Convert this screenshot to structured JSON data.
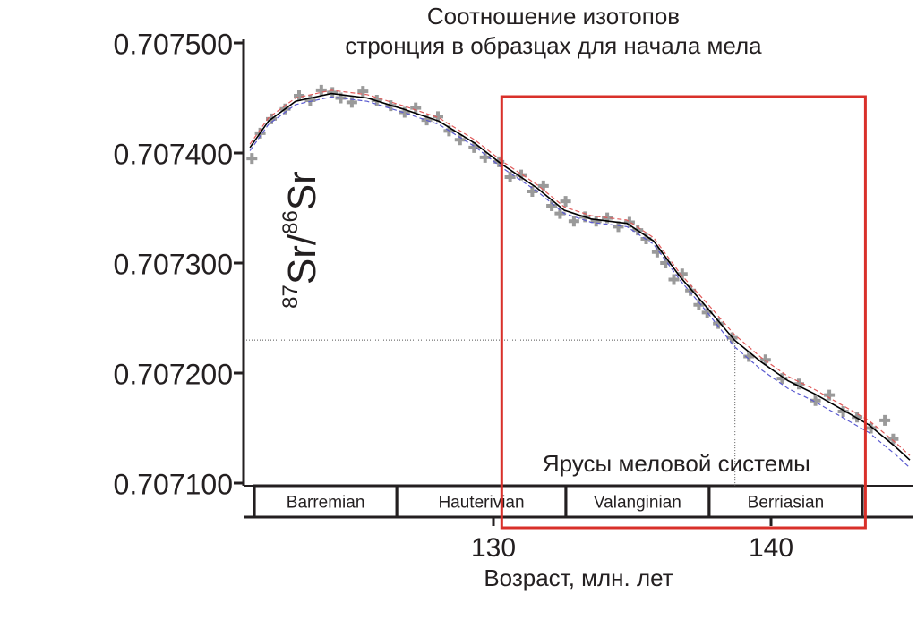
{
  "chart_data": {
    "type": "scatter",
    "title": [
      "Соотношение изотопов",
      "стронция в образцах для начала мела"
    ],
    "x_label": "Возраст, млн. лет",
    "y_label": [
      "87",
      "Sr/",
      "86",
      "Sr"
    ],
    "xlim": [
      121,
      145
    ],
    "xticks": [
      130,
      140
    ],
    "ylim": [
      0.7071,
      0.7075
    ],
    "yticks": [
      {
        "value": 0.7071,
        "label": "0.707100"
      },
      {
        "value": 0.7072,
        "label": "0.707200"
      },
      {
        "value": 0.7073,
        "label": "0.707300"
      },
      {
        "value": 0.7074,
        "label": "0.707400"
      },
      {
        "value": 0.7075,
        "label": "0.707500"
      }
    ],
    "point_color": "#9a9a9a",
    "x": [
      121.3,
      121.6,
      122.0,
      122.5,
      123.0,
      123.4,
      123.8,
      124.2,
      124.5,
      124.9,
      125.3,
      125.8,
      126.3,
      126.8,
      127.2,
      127.6,
      128.0,
      128.4,
      128.8,
      129.3,
      129.7,
      130.2,
      130.6,
      131.0,
      131.4,
      131.8,
      132.1,
      132.4,
      132.6,
      132.9,
      133.3,
      133.7,
      134.1,
      134.5,
      134.9,
      135.2,
      135.5,
      135.9,
      136.2,
      136.5,
      136.8,
      137.1,
      137.4,
      137.7,
      138.1,
      138.6,
      139.2,
      139.8,
      140.4,
      141.0,
      141.6,
      142.1,
      142.6,
      143.1,
      143.6,
      144.1,
      144.4
    ],
    "y": [
      0.707395,
      0.707418,
      0.707431,
      0.70744,
      0.707452,
      0.707448,
      0.707457,
      0.707455,
      0.70745,
      0.707446,
      0.707456,
      0.707448,
      0.707443,
      0.707437,
      0.707441,
      0.70743,
      0.707433,
      0.70742,
      0.707412,
      0.707405,
      0.707396,
      0.707392,
      0.707378,
      0.70738,
      0.707365,
      0.70737,
      0.707352,
      0.707345,
      0.707356,
      0.707338,
      0.707342,
      0.707338,
      0.707341,
      0.707333,
      0.707337,
      0.70733,
      0.707322,
      0.70731,
      0.7073,
      0.707285,
      0.70729,
      0.707275,
      0.707262,
      0.707255,
      0.707245,
      0.707232,
      0.707215,
      0.707212,
      0.707195,
      0.70719,
      0.707175,
      0.70718,
      0.707165,
      0.70716,
      0.70715,
      0.707157,
      0.70714
    ],
    "fit_x": [
      121.23,
      121.9,
      122.87,
      124.16,
      125.45,
      126.74,
      128.03,
      129.32,
      130.29,
      131.58,
      132.55,
      133.52,
      134.81,
      135.77,
      136.74,
      137.71,
      138.68,
      139.65,
      140.61,
      141.58,
      142.55,
      143.52,
      144.48,
      145
    ],
    "curves": [
      {
        "color": "#000000",
        "dashed": false,
        "values": [
          0.707405,
          0.707429,
          0.707447,
          0.707454,
          0.70745,
          0.70744,
          0.707429,
          0.707409,
          0.70739,
          0.707368,
          0.707348,
          0.70734,
          0.707336,
          0.70732,
          0.707287,
          0.707259,
          0.70723,
          0.70721,
          0.707193,
          0.707181,
          0.707167,
          0.707153,
          0.707133,
          0.707121
        ]
      },
      {
        "color": "#e05a5a",
        "dashed": true,
        "values": [
          0.707408,
          0.707432,
          0.70745,
          0.707457,
          0.707453,
          0.707443,
          0.707432,
          0.707412,
          0.707393,
          0.707371,
          0.707351,
          0.707343,
          0.707339,
          0.707323,
          0.70729,
          0.707263,
          0.707235,
          0.707214,
          0.707197,
          0.707185,
          0.707171,
          0.707157,
          0.707137,
          0.707125
        ]
      },
      {
        "color": "#5a5ad0",
        "dashed": true,
        "values": [
          0.707402,
          0.707426,
          0.707444,
          0.707451,
          0.707447,
          0.707437,
          0.707426,
          0.707406,
          0.707387,
          0.707365,
          0.707345,
          0.707337,
          0.707333,
          0.707317,
          0.707284,
          0.707255,
          0.707224,
          0.707203,
          0.707186,
          0.707174,
          0.70716,
          0.707146,
          0.707126,
          0.707114
        ]
      }
    ],
    "stages": [
      {
        "name": "Barremian",
        "start": 121.39,
        "end": 126.52
      },
      {
        "name": "Hauterivian",
        "start": 126.52,
        "end": 132.61
      },
      {
        "name": "Valanginian",
        "start": 132.61,
        "end": 137.77
      },
      {
        "name": "Berriasian",
        "start": 137.77,
        "end": 143.29
      }
    ],
    "reference_point": {
      "x": 138.7,
      "y": 0.70723
    },
    "highlight": {
      "label": "Ярусы меловой системы",
      "x": [
        130.3,
        143.4
      ],
      "color": "#d9302a"
    }
  }
}
